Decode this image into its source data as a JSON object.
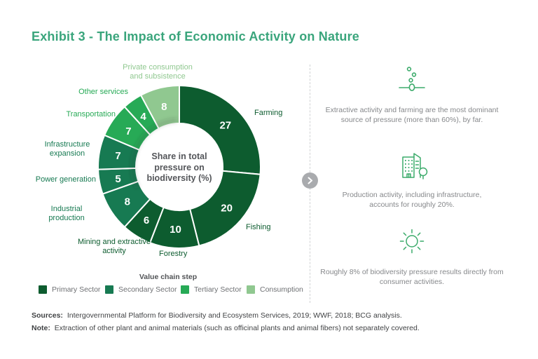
{
  "title": "Exhibit 3 - The Impact of Economic Activity on Nature",
  "chart_data": {
    "type": "pie",
    "subtype": "donut",
    "center_label": "Share in total pressure on biodiversity (%)",
    "start_angle_deg": 0,
    "direction": "clockwise",
    "legend_title": "Value chain step",
    "legend_position": "bottom",
    "segments": [
      {
        "label": "Farming",
        "value": 27,
        "sector": "Primary Sector"
      },
      {
        "label": "Fishing",
        "value": 20,
        "sector": "Primary Sector"
      },
      {
        "label": "Forestry",
        "value": 10,
        "sector": "Primary Sector"
      },
      {
        "label": "Mining and extractive activity",
        "value": 6,
        "sector": "Primary Sector"
      },
      {
        "label": "Industrial production",
        "value": 8,
        "sector": "Secondary Sector"
      },
      {
        "label": "Power generation",
        "value": 5,
        "sector": "Secondary Sector"
      },
      {
        "label": "Infrastructure expansion",
        "value": 7,
        "sector": "Secondary Sector"
      },
      {
        "label": "Transportation",
        "value": 7,
        "sector": "Tertiary Sector"
      },
      {
        "label": "Other services",
        "value": 4,
        "sector": "Tertiary Sector"
      },
      {
        "label": "Private consumption and subsistence",
        "value": 8,
        "sector": "Consumption"
      }
    ],
    "legend": [
      {
        "label": "Primary Sector",
        "color": "#0d5c2f"
      },
      {
        "label": "Secondary Sector",
        "color": "#177a52"
      },
      {
        "label": "Tertiary Sector",
        "color": "#27aa56"
      },
      {
        "label": "Consumption",
        "color": "#90c890"
      }
    ]
  },
  "insights": [
    {
      "icon": "seeding-icon",
      "text": "Extractive activity and farming are the most dominant source of pressure (more than 60%), by far."
    },
    {
      "icon": "buildings-icon",
      "text": "Production activity, including infrastructure, accounts for roughly 20%."
    },
    {
      "icon": "sun-icon",
      "text": "Roughly 8% of biodiversity pressure results directly from consumer activities."
    }
  ],
  "next_button_symbol": "›",
  "footer": {
    "sources_label": "Sources:",
    "sources_text": "Intergovernmental Platform for Biodiversity and Ecosystem Services, 2019; WWF, 2018; BCG analysis.",
    "note_label": "Note:",
    "note_text": "Extraction of other plant and animal materials (such as officinal plants and animal fibers) not separately covered."
  },
  "colors": {
    "title_accent": "#3aa57c",
    "icon_green": "#3cab6b",
    "value_label": "#ffffff",
    "caption_gray": "#86888b",
    "footer_gray": "#404244"
  }
}
